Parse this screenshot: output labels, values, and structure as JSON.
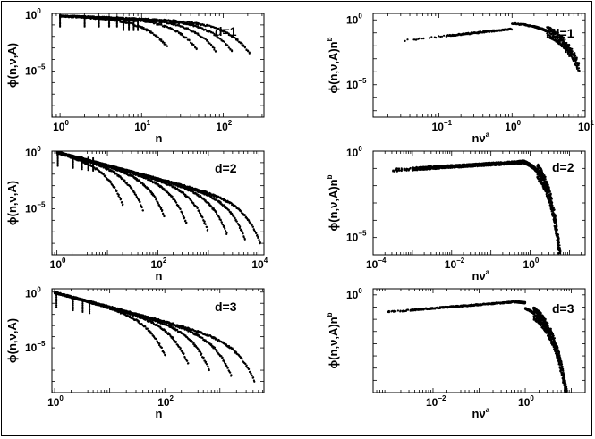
{
  "figure": {
    "panels": [
      {
        "id": "p11",
        "annotation": "d=1",
        "xlabel_base": "n",
        "xlabel_sup": "",
        "ylabel": "ϕ(n,ν,A)",
        "ylabel_sup": "",
        "xlog": [
          -0.1,
          2.5
        ],
        "ylog": [
          -9,
          0
        ],
        "xticks": [
          {
            "v": 0,
            "label": "10",
            "exp": "0"
          },
          {
            "v": 1,
            "label": "10",
            "exp": "1"
          },
          {
            "v": 2,
            "label": "10",
            "exp": "2"
          }
        ],
        "yticks": [
          {
            "v": 0,
            "label": "10",
            "exp": "0"
          },
          {
            "v": -5,
            "label": "10",
            "exp": "−5"
          }
        ]
      },
      {
        "id": "p12",
        "annotation": "d=1",
        "xlabel_base": "nν",
        "xlabel_sup": "a",
        "ylabel": "ϕ(n,ν,A)n",
        "ylabel_sup": "b",
        "xlog": [
          -1.9,
          1
        ],
        "ylog": [
          -7.5,
          0.5
        ],
        "xticks": [
          {
            "v": -1,
            "label": "10",
            "exp": "−1"
          },
          {
            "v": 0,
            "label": "10",
            "exp": "0"
          },
          {
            "v": 1,
            "label": "10",
            "exp": "1"
          }
        ],
        "yticks": [
          {
            "v": 0,
            "label": "10",
            "exp": "0"
          },
          {
            "v": -5,
            "label": "10",
            "exp": "−5"
          }
        ]
      },
      {
        "id": "p21",
        "annotation": "d=2",
        "xlabel_base": "n",
        "xlabel_sup": "",
        "ylabel": "ϕ(n,ν,A)",
        "ylabel_sup": "",
        "xlog": [
          -0.1,
          4.1
        ],
        "ylog": [
          -9,
          0
        ],
        "xticks": [
          {
            "v": 0,
            "label": "10",
            "exp": "0"
          },
          {
            "v": 2,
            "label": "10",
            "exp": "2"
          },
          {
            "v": 4,
            "label": "10",
            "exp": "4"
          }
        ],
        "yticks": [
          {
            "v": 0,
            "label": "10",
            "exp": "0"
          },
          {
            "v": -5,
            "label": "10",
            "exp": "−5"
          }
        ]
      },
      {
        "id": "p22",
        "annotation": "d=2",
        "xlabel_base": "nν",
        "xlabel_sup": "a",
        "ylabel": "ϕ(n,ν,A)n",
        "ylabel_sup": "b",
        "xlog": [
          -4,
          1.4
        ],
        "ylog": [
          -6,
          0
        ],
        "xticks": [
          {
            "v": -4,
            "label": "10",
            "exp": "−4"
          },
          {
            "v": -2,
            "label": "10",
            "exp": "−2"
          },
          {
            "v": 0,
            "label": "10",
            "exp": "0"
          }
        ],
        "yticks": [
          {
            "v": 0,
            "label": "10",
            "exp": "0"
          },
          {
            "v": -5,
            "label": "10",
            "exp": "−5"
          }
        ]
      },
      {
        "id": "p31",
        "annotation": "d=3",
        "xlabel_base": "n",
        "xlabel_sup": "",
        "ylabel": "ϕ(n,ν,A)",
        "ylabel_sup": "",
        "xlog": [
          -0.05,
          3.8
        ],
        "ylog": [
          -9,
          0.3
        ],
        "xticks": [
          {
            "v": 0,
            "label": "10",
            "exp": "0"
          },
          {
            "v": 2,
            "label": "10",
            "exp": "2"
          }
        ],
        "yticks": [
          {
            "v": 0,
            "label": "10",
            "exp": "0"
          },
          {
            "v": -5,
            "label": "10",
            "exp": "−5"
          }
        ]
      },
      {
        "id": "p32",
        "annotation": "d=3",
        "xlabel_base": "nν",
        "xlabel_sup": "a",
        "ylabel": "ϕ(n,ν,A)n",
        "ylabel_sup": "b",
        "xlog": [
          -3.3,
          1.3
        ],
        "ylog": [
          -8,
          0.5
        ],
        "xticks": [
          {
            "v": -2,
            "label": "10",
            "exp": "−2"
          },
          {
            "v": 0,
            "label": "10",
            "exp": "0"
          }
        ],
        "yticks": [
          {
            "v": 0,
            "label": "10",
            "exp": "0"
          }
        ]
      }
    ]
  },
  "chart_data": [
    {
      "type": "scatter",
      "annotation": "d=1",
      "xscale": "log",
      "yscale": "log",
      "xlabel": "n",
      "ylabel": "ϕ(n,ν,A)",
      "series": [
        {
          "cutoff_n": 20,
          "points": [
            [
              1,
              0.5
            ],
            [
              2,
              0.5
            ],
            [
              5,
              0.3
            ],
            [
              10,
              0.02
            ],
            [
              15,
              0.0001
            ],
            [
              20,
              1e-06
            ]
          ]
        },
        {
          "cutoff_n": 45,
          "points": [
            [
              1,
              0.5
            ],
            [
              5,
              0.4
            ],
            [
              10,
              0.15
            ],
            [
              20,
              0.01
            ],
            [
              35,
              0.0001
            ],
            [
              45,
              1e-06
            ]
          ]
        },
        {
          "cutoff_n": 75,
          "points": [
            [
              1,
              0.5
            ],
            [
              5,
              0.4
            ],
            [
              10,
              0.25
            ],
            [
              30,
              0.02
            ],
            [
              60,
              0.0001
            ],
            [
              75,
              1e-06
            ]
          ]
        },
        {
          "cutoff_n": 120,
          "points": [
            [
              1,
              0.5
            ],
            [
              5,
              0.4
            ],
            [
              15,
              0.2
            ],
            [
              50,
              0.02
            ],
            [
              100,
              0.0001
            ],
            [
              120,
              1e-06
            ]
          ]
        },
        {
          "cutoff_n": 190,
          "points": [
            [
              1,
              0.5
            ],
            [
              5,
              0.4
            ],
            [
              20,
              0.15
            ],
            [
              80,
              0.02
            ],
            [
              160,
              0.0001
            ],
            [
              190,
              1e-06
            ]
          ]
        }
      ]
    },
    {
      "type": "scatter",
      "annotation": "d=1",
      "xscale": "log",
      "yscale": "log",
      "xlabel": "nν^a",
      "ylabel": "ϕ(n,ν,A)n^b",
      "collapse": [
        [
          0.03,
          0.01
        ],
        [
          0.1,
          0.05
        ],
        [
          0.3,
          0.2
        ],
        [
          1,
          0.5
        ],
        [
          2,
          0.3
        ],
        [
          4,
          0.01
        ],
        [
          6,
          0.0001
        ],
        [
          8,
          1e-06
        ]
      ]
    },
    {
      "type": "scatter",
      "annotation": "d=2",
      "xscale": "log",
      "yscale": "log",
      "xlabel": "n",
      "ylabel": "ϕ(n,ν,A)",
      "series": [
        {
          "cutoff_n": 20
        },
        {
          "cutoff_n": 50
        },
        {
          "cutoff_n": 130
        },
        {
          "cutoff_n": 350
        },
        {
          "cutoff_n": 900
        },
        {
          "cutoff_n": 2200
        },
        {
          "cutoff_n": 5000
        },
        {
          "cutoff_n": 10000
        }
      ]
    },
    {
      "type": "scatter",
      "annotation": "d=2",
      "xscale": "log",
      "yscale": "log",
      "xlabel": "nν^a",
      "ylabel": "ϕ(n,ν,A)n^b",
      "collapse": [
        [
          0.0003,
          0.05
        ],
        [
          0.01,
          0.15
        ],
        [
          0.1,
          0.3
        ],
        [
          0.5,
          0.4
        ],
        [
          1,
          0.2
        ],
        [
          3,
          0.001
        ],
        [
          8,
          1e-05
        ]
      ]
    },
    {
      "type": "scatter",
      "annotation": "d=3",
      "xscale": "log",
      "yscale": "log",
      "xlabel": "n",
      "ylabel": "ϕ(n,ν,A)",
      "series": [
        {
          "cutoff_n": 100
        },
        {
          "cutoff_n": 250
        },
        {
          "cutoff_n": 600
        },
        {
          "cutoff_n": 1500
        },
        {
          "cutoff_n": 4000
        }
      ]
    },
    {
      "type": "scatter",
      "annotation": "d=3",
      "xscale": "log",
      "yscale": "log",
      "xlabel": "nν^a",
      "ylabel": "ϕ(n,ν,A)n^b",
      "collapse": [
        [
          0.001,
          0.05
        ],
        [
          0.01,
          0.1
        ],
        [
          0.1,
          0.2
        ],
        [
          0.5,
          0.25
        ],
        [
          1,
          0.05
        ],
        [
          3,
          0.0001
        ],
        [
          8,
          1e-07
        ]
      ]
    }
  ]
}
